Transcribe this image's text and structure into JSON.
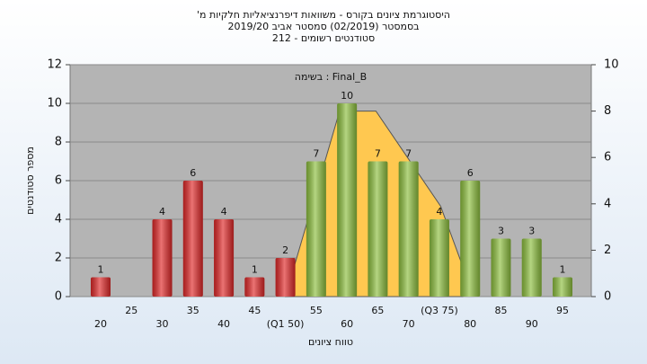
{
  "chart_data": {
    "type": "bar",
    "title": [
      "היסטוגרמת ציונים בקורס - משוואות דיפרנציאליות חלקיות מ'",
      "בסמסטר (02/2019) סמסטר אביב 2019/20",
      "סטודנטים רשומים - 212"
    ],
    "annotation": "בשימה : Final_B",
    "x_label": "טווח ציונים",
    "y_label": "מספר סטודנטים",
    "categories": [
      "20",
      "25",
      "30",
      "35",
      "40",
      "45",
      "(Q1 50)",
      "55",
      "60",
      "65",
      "70",
      "(Q3 75)",
      "80",
      "85",
      "90",
      "95"
    ],
    "category_positions": [
      20,
      25,
      30,
      35,
      40,
      45,
      50,
      55,
      60,
      65,
      70,
      75,
      80,
      85,
      90,
      95
    ],
    "values": [
      1,
      0,
      4,
      6,
      4,
      1,
      2,
      7,
      10,
      7,
      7,
      4,
      6,
      3,
      3,
      1
    ],
    "colors": [
      "#e02828",
      "#e02828",
      "#e02828",
      "#e02828",
      "#e02828",
      "#e02828",
      "#e02828",
      "#8dbf3e",
      "#8dbf3e",
      "#8dbf3e",
      "#8dbf3e",
      "#8dbf3e",
      "#8dbf3e",
      "#8dbf3e",
      "#8dbf3e",
      "#8dbf3e"
    ],
    "area": {
      "color": "#ffc850",
      "axis": "y2",
      "x": [
        50,
        58.8,
        64.7,
        75.2,
        78.8
      ],
      "values": [
        0,
        8,
        8,
        3.9,
        1.3
      ]
    },
    "ylim": [
      0,
      12
    ],
    "yticks": [
      0,
      2,
      4,
      6,
      8,
      10,
      12
    ],
    "y2lim": [
      0,
      10
    ],
    "y2ticks": [
      0,
      2,
      4,
      6,
      8,
      10
    ],
    "grid": true
  }
}
